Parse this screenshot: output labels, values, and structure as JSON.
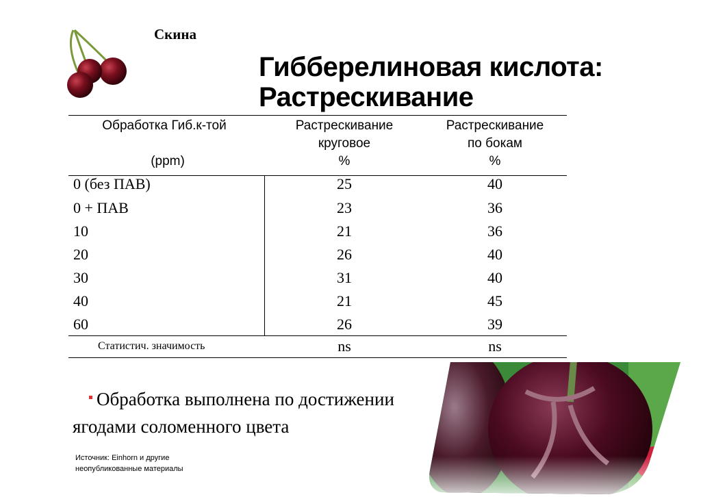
{
  "variety": "Скина",
  "title": [
    "Гибберелиновая кислота:",
    "Растрескивание"
  ],
  "table": {
    "headers": {
      "col1": [
        "Обработка Гиб.к-той",
        "(ppm)"
      ],
      "col2": [
        "Растрескивание",
        "круговое",
        "%"
      ],
      "col3": [
        "Растрескивание",
        "по бокам",
        "%"
      ]
    },
    "rows": [
      {
        "treatment": "0 (без ПАВ)",
        "circular": "25",
        "side": "40"
      },
      {
        "treatment": "0 + ПАВ",
        "circular": "23",
        "side": "36"
      },
      {
        "treatment": "10",
        "circular": "21",
        "side": "36"
      },
      {
        "treatment": "20",
        "circular": "26",
        "side": "40"
      },
      {
        "treatment": "30",
        "circular": "31",
        "side": "40"
      },
      {
        "treatment": "40",
        "circular": "21",
        "side": "45"
      },
      {
        "treatment": "60",
        "circular": "26",
        "side": "39"
      }
    ],
    "stat": {
      "label": "Статистич. значимость",
      "circular": "ns",
      "side": "ns"
    }
  },
  "bullet": [
    "Обработка выполнена по достижении",
    "ягодами соломенного цвета"
  ],
  "source": [
    "Источник: Einhorn и  другие",
    "неопубликованные материалы"
  ],
  "colors": {
    "bullet": "#e03030",
    "cherry": "#5a0a14"
  }
}
